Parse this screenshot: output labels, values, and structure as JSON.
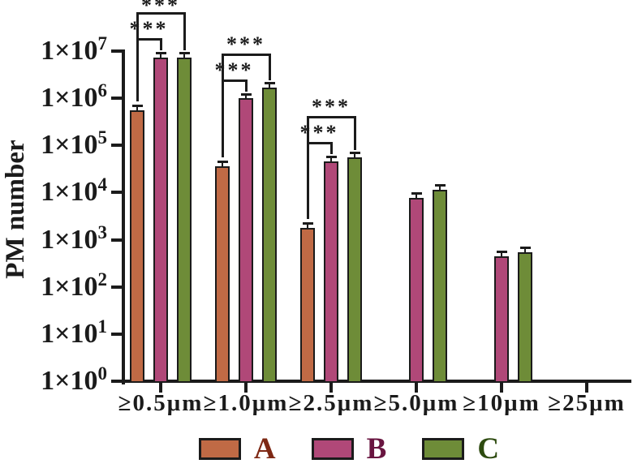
{
  "chart_data": {
    "type": "bar",
    "scale_y": "log10",
    "title": "",
    "xlabel": "",
    "ylabel": "PM number",
    "ylim": [
      1,
      10000000
    ],
    "grid": false,
    "legend_position": "bottom",
    "y_tick_mantissa": "1×10",
    "y_tick_exponents": [
      0,
      1,
      2,
      3,
      4,
      5,
      6,
      7
    ],
    "categories": [
      "≥0.5μm",
      "≥1.0μm",
      "≥2.5μm",
      "≥5.0μm",
      "≥10μm",
      "≥25μm"
    ],
    "series": [
      {
        "name": "A",
        "color": "#C06A45",
        "label_color": "#7E2814",
        "values": [
          550000,
          36000,
          1800,
          null,
          null,
          null
        ],
        "errors_upper": [
          150000,
          10000,
          500,
          null,
          null,
          null
        ]
      },
      {
        "name": "B",
        "color": "#B04878",
        "label_color": "#691540",
        "values": [
          7300000,
          1000000,
          46000,
          7800,
          450,
          null
        ],
        "errors_upper": [
          2000000,
          250000,
          12000,
          2000,
          120,
          null
        ]
      },
      {
        "name": "C",
        "color": "#6E8C38",
        "label_color": "#2E4B10",
        "values": [
          7200000,
          1700000,
          56000,
          11500,
          550,
          null
        ],
        "errors_upper": [
          1900000,
          450000,
          15000,
          3000,
          150,
          null
        ]
      }
    ],
    "significance": [
      {
        "category": "≥0.5μm",
        "category_index": 0,
        "pairs": [
          {
            "between": [
              "A",
              "B"
            ],
            "label": "***"
          },
          {
            "between": [
              "A",
              "C"
            ],
            "label": "***"
          }
        ]
      },
      {
        "category": "≥1.0μm",
        "category_index": 1,
        "pairs": [
          {
            "between": [
              "A",
              "B"
            ],
            "label": "***"
          },
          {
            "between": [
              "A",
              "C"
            ],
            "label": "***"
          }
        ]
      },
      {
        "category": "≥2.5μm",
        "category_index": 2,
        "pairs": [
          {
            "between": [
              "A",
              "B"
            ],
            "label": "***"
          },
          {
            "between": [
              "A",
              "C"
            ],
            "label": "***"
          }
        ]
      }
    ],
    "axis_color": "#1b1b1b"
  }
}
